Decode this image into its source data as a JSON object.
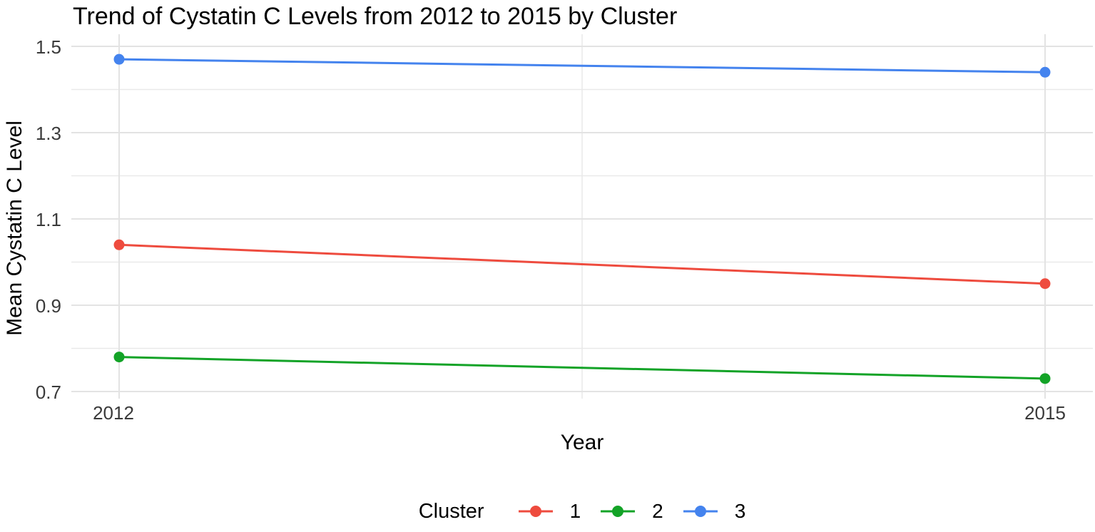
{
  "chart_data": {
    "type": "line",
    "title": "Trend of Cystatin C Levels from 2012 to 2015 by Cluster",
    "xlabel": "Year",
    "ylabel": "Mean Cystatin C Level",
    "x": [
      2012,
      2015
    ],
    "xtick_labels": [
      "2012",
      "2015"
    ],
    "yticks": [
      1.5,
      1.3,
      1.1,
      0.9,
      0.7
    ],
    "ytick_labels": [
      "1.5",
      "1.3",
      "1.1",
      "0.9",
      "0.7"
    ],
    "y_minor_ticks": [
      1.4,
      1.2,
      1.0,
      0.8
    ],
    "x_minor_ticks": [
      2013.5
    ],
    "ylim": [
      0.68,
      1.53
    ],
    "xlim": [
      2011.55,
      2015.47
    ],
    "grid": "horizontal and vertical major + minor gridlines, light gray on white, no panel border, no tick marks",
    "legend": {
      "title": "Cluster",
      "position": "bottom-center"
    },
    "series": [
      {
        "name": "1",
        "values": [
          1.04,
          0.95
        ],
        "color": "#EE4B3E"
      },
      {
        "name": "2",
        "values": [
          0.78,
          0.73
        ],
        "color": "#13A327"
      },
      {
        "name": "3",
        "values": [
          1.47,
          1.44
        ],
        "color": "#4483EE"
      }
    ],
    "colors": {
      "grid_major": "#E3E3E3",
      "grid_minor": "#E9E9E9",
      "axis_text": "#3a3a3a",
      "text": "#000000",
      "background": "#ffffff"
    }
  }
}
